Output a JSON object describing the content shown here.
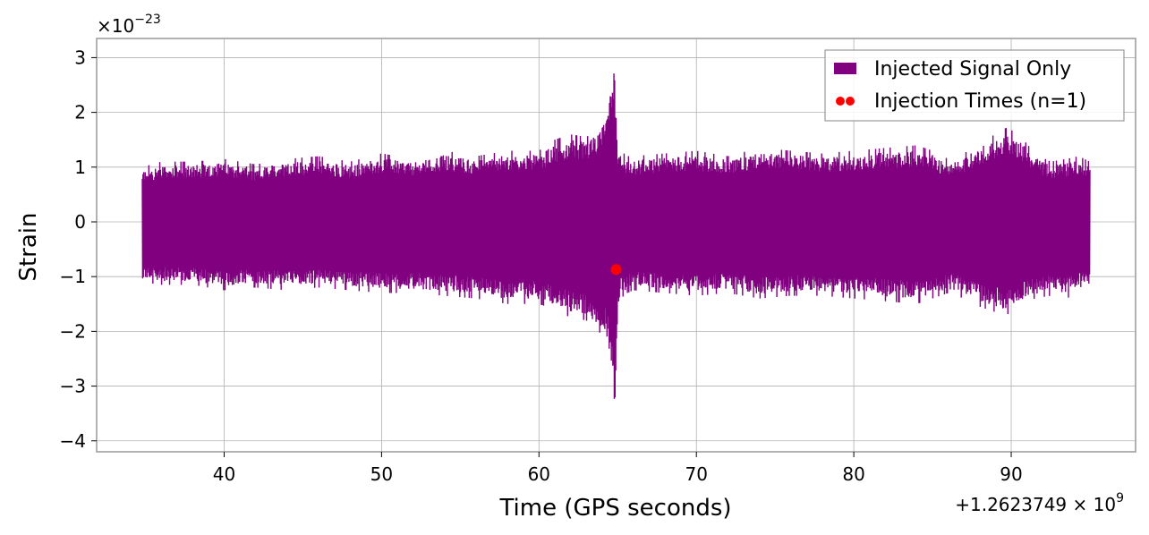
{
  "chart_data": {
    "type": "line",
    "title": "",
    "xlabel": "Time (GPS seconds)",
    "ylabel": "Strain",
    "x_offset_text": "+1.2623749 × 10",
    "x_offset_exponent": "9",
    "y_scale_text": "×10",
    "y_scale_exponent": "−23",
    "xlim": [
      31.9,
      97.9
    ],
    "ylim": [
      -4.2,
      3.35
    ],
    "x_ticks": [
      {
        "value": 40,
        "label": "40"
      },
      {
        "value": 50,
        "label": "50"
      },
      {
        "value": 60,
        "label": "60"
      },
      {
        "value": 70,
        "label": "70"
      },
      {
        "value": 80,
        "label": "80"
      },
      {
        "value": 90,
        "label": "90"
      }
    ],
    "y_ticks": [
      {
        "value": 3,
        "label": "3"
      },
      {
        "value": 2,
        "label": "2"
      },
      {
        "value": 1,
        "label": "1"
      },
      {
        "value": 0,
        "label": "0"
      },
      {
        "value": -1,
        "label": "−1"
      },
      {
        "value": -2,
        "label": "−2"
      },
      {
        "value": -3,
        "label": "−3"
      },
      {
        "value": -4,
        "label": "−4"
      }
    ],
    "grid": true,
    "legend_position": "top-right",
    "series": [
      {
        "name": "Injected Signal Only",
        "kind": "line",
        "color": "#800080",
        "x": [
          34.8,
          36,
          38,
          40,
          42,
          44,
          46,
          48,
          50,
          52,
          54,
          56,
          58,
          60,
          61,
          62,
          63,
          63.8,
          64.3,
          64.6,
          64.8,
          65.0,
          65.2,
          65.6,
          66,
          68,
          70,
          72,
          74,
          76,
          78,
          80,
          82,
          84,
          85,
          86,
          87,
          88,
          89,
          89.7,
          90.5,
          91.5,
          92.5,
          93.5,
          94.3,
          95.0
        ],
        "upper": [
          1.0,
          1.1,
          1.1,
          1.15,
          1.05,
          1.15,
          1.2,
          1.1,
          1.25,
          1.15,
          1.3,
          1.2,
          1.3,
          1.3,
          1.5,
          1.6,
          1.55,
          1.7,
          2.0,
          2.6,
          3.0,
          1.4,
          1.3,
          1.2,
          1.2,
          1.25,
          1.3,
          1.2,
          1.35,
          1.3,
          1.25,
          1.3,
          1.35,
          1.4,
          1.3,
          1.15,
          1.25,
          1.45,
          1.6,
          1.72,
          1.6,
          1.25,
          1.1,
          1.15,
          1.2,
          1.1
        ],
        "lower": [
          -1.1,
          -1.15,
          -1.15,
          -1.25,
          -1.2,
          -1.25,
          -1.2,
          -1.25,
          -1.3,
          -1.3,
          -1.35,
          -1.4,
          -1.5,
          -1.5,
          -1.6,
          -1.75,
          -1.8,
          -2.0,
          -2.2,
          -2.8,
          -3.85,
          -1.7,
          -1.4,
          -1.3,
          -1.25,
          -1.3,
          -1.35,
          -1.3,
          -1.4,
          -1.35,
          -1.35,
          -1.4,
          -1.45,
          -1.5,
          -1.4,
          -1.3,
          -1.4,
          -1.55,
          -1.65,
          -1.7,
          -1.55,
          -1.4,
          -1.35,
          -1.4,
          -1.3,
          -1.2
        ]
      },
      {
        "name": "Injection Times (n=1)",
        "kind": "scatter",
        "color": "#ff0000",
        "x": [
          64.9
        ],
        "y": [
          -0.87
        ]
      }
    ]
  }
}
